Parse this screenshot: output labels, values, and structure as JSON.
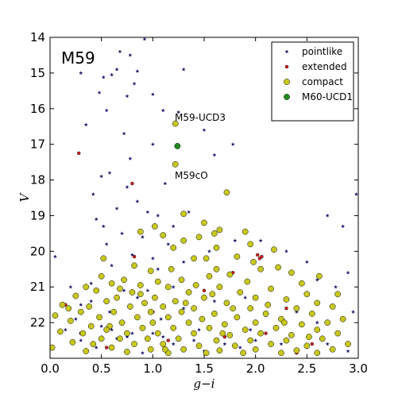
{
  "chart_data": {
    "type": "scatter",
    "title": "M59",
    "xlabel": "g−i",
    "ylabel": "V",
    "xlim": [
      0.0,
      3.0
    ],
    "ylim": [
      14.0,
      23.0
    ],
    "y_inverted": true,
    "x_ticks": [
      "0.0",
      "0.5",
      "1.0",
      "1.5",
      "2.0",
      "2.5",
      "3.0"
    ],
    "y_ticks": [
      "14",
      "15",
      "16",
      "17",
      "18",
      "19",
      "20",
      "21",
      "22"
    ],
    "legend_position": "top-right",
    "grid": false,
    "annotations": [
      {
        "text": "M59-UCD3",
        "x": 1.22,
        "y": 16.42
      },
      {
        "text": "M59cO",
        "x": 1.22,
        "y": 17.9
      }
    ],
    "series": [
      {
        "name": "pointlike",
        "marker": "star",
        "color": "#1a1a6e",
        "points": [
          [
            0.3,
            15.0
          ],
          [
            0.48,
            15.55
          ],
          [
            0.52,
            15.12
          ],
          [
            0.68,
            14.4
          ],
          [
            0.75,
            15.65
          ],
          [
            0.85,
            14.95
          ],
          [
            0.92,
            14.05
          ],
          [
            0.35,
            16.45
          ],
          [
            0.55,
            16.05
          ],
          [
            0.72,
            16.7
          ],
          [
            1.0,
            15.6
          ],
          [
            1.1,
            16.05
          ],
          [
            1.25,
            16.1
          ],
          [
            1.3,
            14.9
          ],
          [
            0.65,
            14.9
          ],
          [
            0.78,
            14.5
          ],
          [
            0.82,
            15.3
          ],
          [
            0.6,
            15.05
          ],
          [
            1.5,
            16.6
          ],
          [
            1.6,
            17.3
          ],
          [
            1.78,
            17.0
          ],
          [
            1.0,
            17.0
          ],
          [
            0.78,
            17.4
          ],
          [
            0.58,
            17.8
          ],
          [
            0.75,
            18.2
          ],
          [
            0.5,
            17.9
          ],
          [
            0.42,
            18.4
          ],
          [
            1.12,
            18.1
          ],
          [
            0.45,
            19.1
          ],
          [
            0.52,
            19.3
          ],
          [
            0.65,
            18.8
          ],
          [
            0.85,
            18.6
          ],
          [
            0.95,
            18.9
          ],
          [
            1.05,
            19.0
          ],
          [
            0.7,
            19.5
          ],
          [
            0.9,
            19.6
          ],
          [
            0.55,
            19.8
          ],
          [
            0.8,
            20.1
          ],
          [
            0.6,
            20.4
          ],
          [
            1.15,
            19.8
          ],
          [
            1.3,
            20.3
          ],
          [
            1.55,
            20.0
          ],
          [
            1.8,
            19.7
          ],
          [
            2.05,
            19.7
          ],
          [
            2.3,
            20.0
          ],
          [
            2.5,
            20.3
          ],
          [
            2.6,
            20.8
          ],
          [
            2.78,
            21.0
          ],
          [
            2.9,
            20.6
          ],
          [
            0.05,
            20.15
          ],
          [
            0.2,
            21.0
          ],
          [
            2.95,
            21.7
          ],
          [
            2.98,
            18.4
          ],
          [
            2.7,
            19.0
          ],
          [
            2.85,
            19.3
          ],
          [
            0.4,
            20.9
          ],
          [
            1.0,
            20.2
          ],
          [
            1.2,
            19.3
          ],
          [
            1.35,
            18.9
          ],
          [
            0.3,
            21.5
          ],
          [
            0.4,
            21.4
          ],
          [
            0.25,
            21.9
          ],
          [
            1.05,
            20.5
          ],
          [
            1.2,
            21.0
          ],
          [
            0.72,
            21.1
          ],
          [
            0.85,
            21.3
          ],
          [
            0.95,
            21.1
          ],
          [
            1.3,
            21.6
          ],
          [
            1.6,
            21.4
          ],
          [
            1.9,
            21.3
          ],
          [
            2.1,
            21.8
          ],
          [
            2.4,
            21.7
          ],
          [
            2.6,
            22.0
          ],
          [
            0.5,
            22.1
          ],
          [
            0.6,
            22.2
          ],
          [
            0.65,
            22.45
          ],
          [
            0.75,
            22.4
          ],
          [
            0.8,
            22.3
          ],
          [
            1.0,
            22.3
          ],
          [
            1.1,
            22.4
          ],
          [
            1.2,
            22.6
          ],
          [
            1.4,
            22.5
          ],
          [
            1.5,
            22.8
          ],
          [
            1.7,
            22.6
          ],
          [
            1.85,
            22.7
          ],
          [
            2.0,
            22.5
          ],
          [
            2.25,
            22.6
          ],
          [
            2.5,
            22.7
          ],
          [
            2.7,
            22.6
          ],
          [
            2.9,
            22.8
          ],
          [
            0.15,
            22.2
          ],
          [
            0.3,
            22.5
          ],
          [
            0.45,
            22.7
          ],
          [
            0.9,
            22.85
          ],
          [
            0.58,
            21.7
          ],
          [
            1.08,
            21.9
          ],
          [
            1.45,
            22.2
          ],
          [
            1.95,
            22.2
          ]
        ]
      },
      {
        "name": "extended",
        "marker": "circle-small",
        "color": "#d02020",
        "points": [
          [
            0.28,
            17.25
          ],
          [
            0.8,
            18.1
          ],
          [
            0.82,
            20.15
          ],
          [
            1.78,
            20.6
          ],
          [
            2.02,
            20.1
          ],
          [
            2.06,
            20.15
          ],
          [
            2.04,
            20.2
          ],
          [
            1.5,
            21.1
          ],
          [
            0.15,
            21.5
          ],
          [
            2.3,
            21.6
          ],
          [
            0.3,
            22.3
          ],
          [
            2.1,
            22.3
          ],
          [
            2.55,
            22.6
          ],
          [
            1.7,
            22.4
          ],
          [
            1.15,
            22.5
          ],
          [
            2.4,
            22.85
          ],
          [
            0.55,
            22.7
          ],
          [
            1.0,
            21.7
          ]
        ]
      },
      {
        "name": "compact",
        "marker": "circle",
        "color": "#c8c81e",
        "points": [
          [
            1.22,
            16.42
          ],
          [
            1.22,
            17.56
          ],
          [
            1.72,
            18.35
          ],
          [
            1.3,
            18.95
          ],
          [
            1.5,
            19.2
          ],
          [
            1.02,
            19.3
          ],
          [
            1.65,
            19.4
          ],
          [
            0.88,
            19.45
          ],
          [
            1.9,
            19.45
          ],
          [
            1.6,
            19.5
          ],
          [
            1.1,
            19.55
          ],
          [
            1.3,
            19.7
          ],
          [
            1.45,
            19.6
          ],
          [
            1.62,
            19.9
          ],
          [
            1.95,
            19.8
          ],
          [
            1.2,
            19.9
          ],
          [
            1.82,
            20.15
          ],
          [
            2.18,
            19.95
          ],
          [
            1.52,
            20.2
          ],
          [
            1.98,
            20.3
          ],
          [
            1.4,
            20.2
          ],
          [
            0.52,
            20.2
          ],
          [
            0.82,
            20.4
          ],
          [
            1.18,
            20.5
          ],
          [
            1.62,
            20.5
          ],
          [
            2.05,
            20.5
          ],
          [
            2.22,
            20.45
          ],
          [
            0.98,
            20.55
          ],
          [
            1.55,
            20.7
          ],
          [
            1.75,
            20.65
          ],
          [
            2.35,
            20.6
          ],
          [
            2.62,
            20.7
          ],
          [
            0.5,
            20.7
          ],
          [
            0.72,
            20.8
          ],
          [
            1.28,
            20.8
          ],
          [
            0.6,
            20.9
          ],
          [
            0.88,
            20.95
          ],
          [
            1.05,
            20.85
          ],
          [
            1.42,
            20.95
          ],
          [
            1.92,
            20.85
          ],
          [
            2.45,
            20.9
          ],
          [
            0.35,
            21.0
          ],
          [
            1.15,
            21.0
          ],
          [
            1.65,
            21.0
          ],
          [
            2.15,
            21.05
          ],
          [
            0.45,
            21.1
          ],
          [
            0.8,
            21.15
          ],
          [
            1.35,
            21.15
          ],
          [
            1.85,
            21.15
          ],
          [
            2.5,
            21.2
          ],
          [
            2.8,
            21.2
          ],
          [
            0.25,
            21.25
          ],
          [
            0.65,
            21.3
          ],
          [
            1.02,
            21.3
          ],
          [
            1.5,
            21.3
          ],
          [
            2.0,
            21.3
          ],
          [
            2.3,
            21.35
          ],
          [
            0.55,
            21.4
          ],
          [
            0.92,
            21.45
          ],
          [
            1.22,
            21.4
          ],
          [
            1.72,
            21.45
          ],
          [
            2.6,
            21.45
          ],
          [
            0.12,
            21.5
          ],
          [
            0.38,
            21.55
          ],
          [
            0.78,
            21.55
          ],
          [
            1.1,
            21.55
          ],
          [
            1.4,
            21.6
          ],
          [
            1.95,
            21.6
          ],
          [
            2.4,
            21.6
          ],
          [
            2.75,
            21.55
          ],
          [
            0.3,
            21.7
          ],
          [
            0.62,
            21.7
          ],
          [
            0.98,
            21.7
          ],
          [
            1.28,
            21.7
          ],
          [
            1.6,
            21.75
          ],
          [
            2.1,
            21.75
          ],
          [
            2.55,
            21.75
          ],
          [
            0.05,
            21.8
          ],
          [
            0.48,
            21.85
          ],
          [
            0.85,
            21.85
          ],
          [
            1.15,
            21.85
          ],
          [
            1.48,
            21.9
          ],
          [
            1.82,
            21.85
          ],
          [
            2.25,
            21.9
          ],
          [
            2.85,
            21.9
          ],
          [
            0.2,
            21.95
          ],
          [
            0.7,
            22.0
          ],
          [
            1.0,
            22.0
          ],
          [
            1.35,
            22.0
          ],
          [
            1.7,
            22.05
          ],
          [
            2.0,
            22.0
          ],
          [
            2.45,
            22.05
          ],
          [
            2.7,
            22.0
          ],
          [
            0.4,
            22.1
          ],
          [
            0.58,
            22.1
          ],
          [
            0.9,
            22.15
          ],
          [
            1.2,
            22.15
          ],
          [
            1.55,
            22.15
          ],
          [
            1.9,
            22.2
          ],
          [
            2.2,
            22.15
          ],
          [
            2.6,
            22.2
          ],
          [
            0.1,
            22.25
          ],
          [
            0.32,
            22.3
          ],
          [
            0.75,
            22.3
          ],
          [
            1.05,
            22.3
          ],
          [
            1.4,
            22.3
          ],
          [
            1.75,
            22.35
          ],
          [
            2.05,
            22.3
          ],
          [
            2.35,
            22.35
          ],
          [
            2.8,
            22.3
          ],
          [
            0.5,
            22.45
          ],
          [
            0.68,
            22.45
          ],
          [
            0.95,
            22.45
          ],
          [
            1.25,
            22.45
          ],
          [
            1.62,
            22.5
          ],
          [
            1.95,
            22.5
          ],
          [
            2.3,
            22.5
          ],
          [
            2.65,
            22.45
          ],
          [
            0.22,
            22.55
          ],
          [
            0.42,
            22.6
          ],
          [
            0.82,
            22.6
          ],
          [
            1.1,
            22.6
          ],
          [
            1.45,
            22.65
          ],
          [
            1.8,
            22.65
          ],
          [
            2.15,
            22.6
          ],
          [
            2.5,
            22.65
          ],
          [
            2.9,
            22.6
          ],
          [
            0.02,
            22.7
          ],
          [
            0.6,
            22.7
          ],
          [
            0.98,
            22.75
          ],
          [
            1.3,
            22.75
          ],
          [
            1.65,
            22.78
          ],
          [
            2.0,
            22.75
          ],
          [
            2.4,
            22.78
          ],
          [
            2.75,
            22.75
          ],
          [
            0.35,
            22.8
          ],
          [
            0.75,
            22.82
          ],
          [
            1.15,
            22.85
          ],
          [
            1.52,
            22.85
          ],
          [
            1.88,
            22.85
          ],
          [
            2.25,
            22.85
          ],
          [
            2.6,
            22.85
          ],
          [
            0.88,
            21.2
          ],
          [
            1.58,
            21.2
          ],
          [
            2.12,
            21.5
          ],
          [
            0.68,
            21.05
          ],
          [
            1.32,
            21.45
          ],
          [
            1.78,
            21.6
          ],
          [
            2.28,
            22.0
          ],
          [
            0.55,
            22.2
          ],
          [
            1.12,
            22.75
          ],
          [
            1.68,
            22.3
          ],
          [
            2.52,
            22.4
          ],
          [
            0.18,
            21.6
          ]
        ]
      },
      {
        "name": "M60-UCD1",
        "marker": "circle",
        "color": "#1e8c1e",
        "points": [
          [
            1.24,
            17.05
          ]
        ]
      }
    ]
  }
}
